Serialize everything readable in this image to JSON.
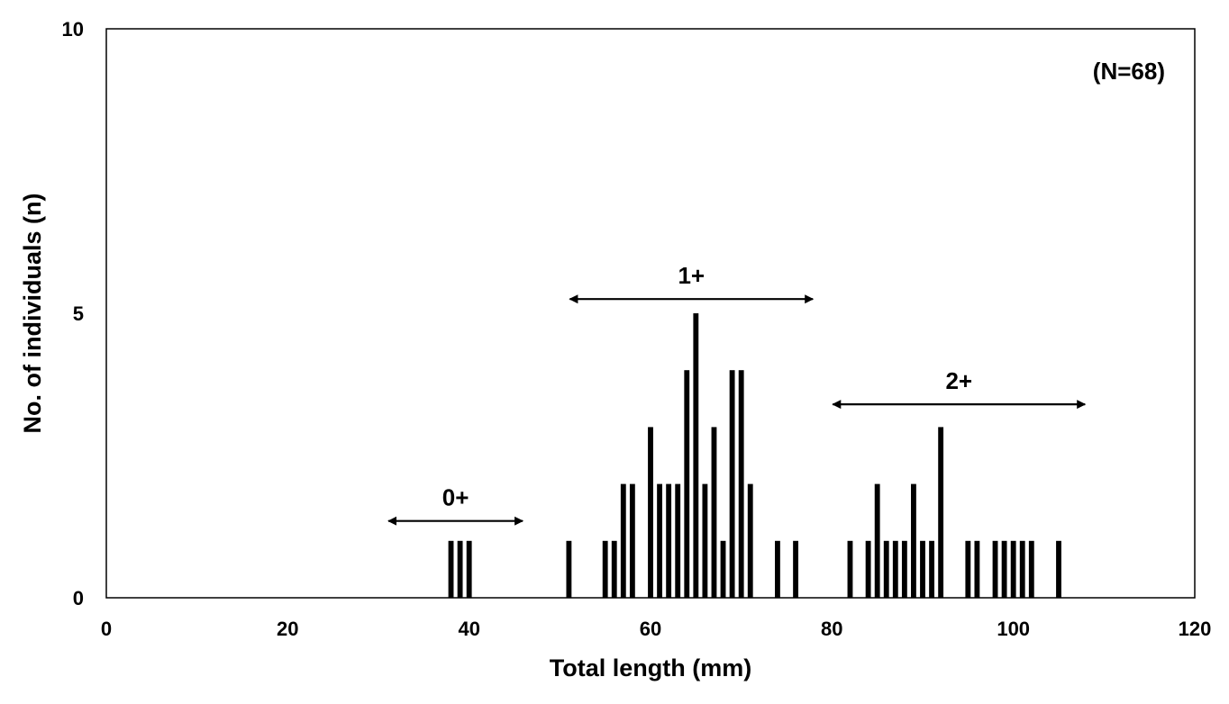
{
  "chart_data": {
    "type": "bar",
    "xlabel": "Total length (mm)",
    "ylabel": "No. of individuals (n)",
    "xlim": [
      0,
      120
    ],
    "ylim": [
      0,
      10
    ],
    "xticks": [
      "0",
      "20",
      "40",
      "60",
      "80",
      "100",
      "120"
    ],
    "yticks": [
      "0",
      "5",
      "10"
    ],
    "grid": false,
    "bar_color": "#000000",
    "x": [
      38,
      39,
      40,
      51,
      55,
      56,
      57,
      58,
      60,
      61,
      62,
      63,
      64,
      65,
      66,
      67,
      68,
      69,
      70,
      71,
      74,
      76,
      82,
      84,
      85,
      86,
      87,
      88,
      89,
      90,
      91,
      92,
      95,
      96,
      98,
      99,
      100,
      101,
      102,
      105
    ],
    "values": [
      1,
      1,
      1,
      1,
      1,
      1,
      2,
      2,
      3,
      2,
      2,
      2,
      4,
      5,
      2,
      3,
      1,
      4,
      4,
      2,
      1,
      1,
      1,
      1,
      2,
      1,
      1,
      1,
      2,
      1,
      1,
      3,
      1,
      1,
      1,
      1,
      1,
      1,
      1,
      1
    ],
    "annotations": {
      "sample_size": "(N=68)",
      "age_groups": [
        {
          "label": "0+",
          "x_range": [
            31,
            46
          ],
          "y": 1.35
        },
        {
          "label": "1+",
          "x_range": [
            51,
            78
          ],
          "y": 5.25
        },
        {
          "label": "2+",
          "x_range": [
            80,
            108
          ],
          "y": 3.4
        }
      ]
    }
  }
}
